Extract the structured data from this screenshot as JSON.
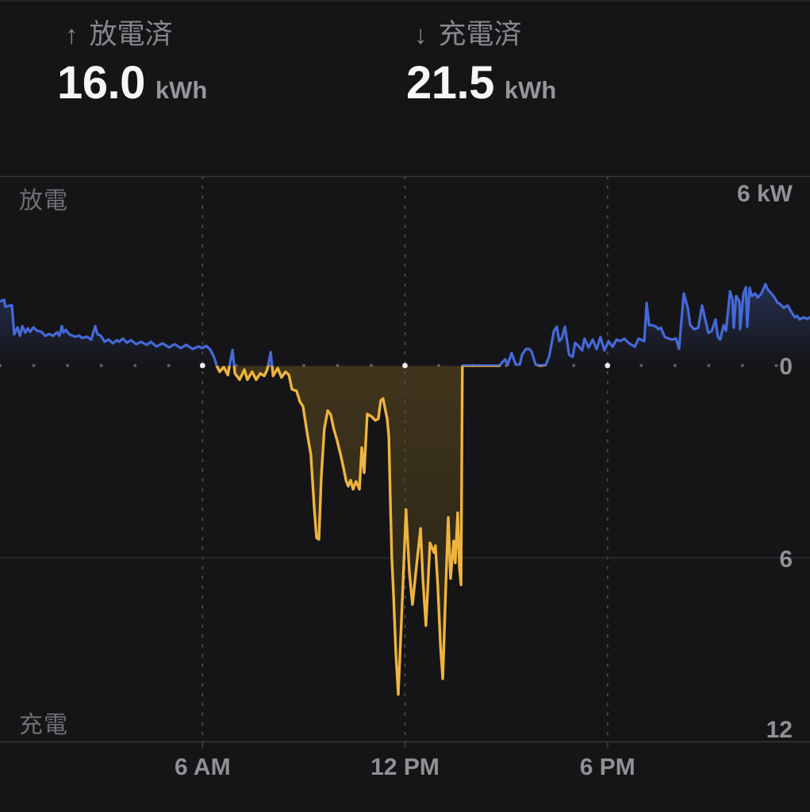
{
  "header": {
    "discharged": {
      "arrow": "↑",
      "label": "放電済",
      "value": "16.0",
      "unit": "kWh"
    },
    "charged": {
      "arrow": "↓",
      "label": "充電済",
      "value": "21.5",
      "unit": "kWh"
    }
  },
  "chart": {
    "discharge_zone_label": "放電",
    "charge_zone_label": "充電",
    "y_axis": {
      "top_label": "6 kW",
      "zero_label": "0",
      "mid_label": "6",
      "bottom_label": "12"
    },
    "colors": {
      "background": "#151517",
      "discharge_line": "#4569d8",
      "charge_line": "#eeb43f",
      "grid_line": "#2e2e32",
      "border_line": "#37373b",
      "dashed_line": "#47474b",
      "dot_minor": "#5d5d62",
      "dot_major": "#eeeef0"
    }
  },
  "chart_data": {
    "type": "area",
    "title": "",
    "xlabel": "",
    "ylabel": "kW",
    "x_axis": {
      "unit": "hour",
      "range": [
        0,
        24
      ],
      "ticks": [
        {
          "hour": 6,
          "label": "6 AM"
        },
        {
          "hour": 12,
          "label": "12 PM"
        },
        {
          "hour": 18,
          "label": "6 PM"
        }
      ]
    },
    "y_axis": {
      "unit": "kW",
      "range": [
        -12,
        6
      ],
      "gridlines_kw": [
        6,
        0,
        -6,
        -12
      ],
      "zero_line_style": "dotted-hourly",
      "positive_zone_label": "放電",
      "negative_zone_label": "充電"
    },
    "summary": {
      "discharged_kwh": 16.0,
      "charged_kwh": 21.5
    },
    "series": [
      {
        "name": "battery_power_kw",
        "positive_means": "discharge (放電)",
        "negative_means": "charge (充電)",
        "points": [
          [
            0,
            2.05
          ],
          [
            0.12,
            2.1
          ],
          [
            0.16,
            1.88
          ],
          [
            0.35,
            1.93
          ],
          [
            0.42,
            1
          ],
          [
            0.52,
            1.22
          ],
          [
            0.59,
            0.95
          ],
          [
            0.66,
            1.26
          ],
          [
            0.75,
            1.05
          ],
          [
            0.82,
            1.19
          ],
          [
            0.89,
            1.08
          ],
          [
            0.99,
            1.22
          ],
          [
            1.1,
            1.11
          ],
          [
            1.22,
            1.08
          ],
          [
            1.34,
            0.95
          ],
          [
            1.46,
            1.01
          ],
          [
            1.57,
            0.95
          ],
          [
            1.69,
            1.06
          ],
          [
            1.76,
            0.95
          ],
          [
            1.83,
            1.26
          ],
          [
            1.88,
            1.05
          ],
          [
            1.95,
            1.14
          ],
          [
            2.05,
            1
          ],
          [
            2.23,
            0.92
          ],
          [
            2.35,
            0.96
          ],
          [
            2.42,
            0.88
          ],
          [
            2.59,
            0.92
          ],
          [
            2.7,
            0.82
          ],
          [
            2.82,
            1.26
          ],
          [
            2.89,
            1
          ],
          [
            2.99,
            0.95
          ],
          [
            3.1,
            0.76
          ],
          [
            3.22,
            0.83
          ],
          [
            3.34,
            0.71
          ],
          [
            3.46,
            0.81
          ],
          [
            3.53,
            0.76
          ],
          [
            3.64,
            0.86
          ],
          [
            3.76,
            0.73
          ],
          [
            3.88,
            0.81
          ],
          [
            4.04,
            0.68
          ],
          [
            4.18,
            0.76
          ],
          [
            4.35,
            0.66
          ],
          [
            4.47,
            0.76
          ],
          [
            4.63,
            0.61
          ],
          [
            4.82,
            0.71
          ],
          [
            5.01,
            0.58
          ],
          [
            5.17,
            0.68
          ],
          [
            5.36,
            0.56
          ],
          [
            5.52,
            0.66
          ],
          [
            5.71,
            0.53
          ],
          [
            5.88,
            0.61
          ],
          [
            5.99,
            0.56
          ],
          [
            6.11,
            0.63
          ],
          [
            6.23,
            0.51
          ],
          [
            6.35,
            0.25
          ],
          [
            6.42,
            0
          ],
          [
            6.51,
            -0.2
          ],
          [
            6.63,
            -0.05
          ],
          [
            6.75,
            -0.3
          ],
          [
            6.82,
            0.1
          ],
          [
            6.89,
            0.5
          ],
          [
            6.96,
            -0.25
          ],
          [
            7.1,
            -0.45
          ],
          [
            7.24,
            -0.13
          ],
          [
            7.33,
            -0.45
          ],
          [
            7.47,
            -0.2
          ],
          [
            7.59,
            -0.45
          ],
          [
            7.71,
            -0.25
          ],
          [
            7.83,
            -0.33
          ],
          [
            7.92,
            -0.13
          ],
          [
            8.02,
            0.43
          ],
          [
            8.09,
            -0.33
          ],
          [
            8.23,
            -0.08
          ],
          [
            8.34,
            -0.38
          ],
          [
            8.46,
            -0.2
          ],
          [
            8.56,
            -0.3
          ],
          [
            8.65,
            -0.76
          ],
          [
            8.79,
            -0.81
          ],
          [
            8.88,
            -1.14
          ],
          [
            8.98,
            -1.31
          ],
          [
            9.1,
            -2.15
          ],
          [
            9.21,
            -2.83
          ],
          [
            9.31,
            -4.55
          ],
          [
            9.38,
            -5.5
          ],
          [
            9.45,
            -5.55
          ],
          [
            9.52,
            -3.55
          ],
          [
            9.61,
            -2.02
          ],
          [
            9.71,
            -1.44
          ],
          [
            9.8,
            -1.57
          ],
          [
            9.89,
            -2.02
          ],
          [
            9.99,
            -2.4
          ],
          [
            10.09,
            -2.83
          ],
          [
            10.18,
            -3.28
          ],
          [
            10.25,
            -3.66
          ],
          [
            10.32,
            -3.85
          ],
          [
            10.39,
            -3.66
          ],
          [
            10.46,
            -3.95
          ],
          [
            10.55,
            -3.7
          ],
          [
            10.65,
            -3.95
          ],
          [
            10.72,
            -2.62
          ],
          [
            10.79,
            -3.42
          ],
          [
            10.88,
            -1.55
          ],
          [
            11,
            -1.62
          ],
          [
            11.12,
            -1.75
          ],
          [
            11.21,
            -1.7
          ],
          [
            11.28,
            -1.12
          ],
          [
            11.35,
            -1.05
          ],
          [
            11.47,
            -1.7
          ],
          [
            11.52,
            -2.25
          ],
          [
            11.57,
            -4.5
          ],
          [
            11.61,
            -6.15
          ],
          [
            11.66,
            -7.3
          ],
          [
            11.73,
            -9.2
          ],
          [
            11.8,
            -10.5
          ],
          [
            11.92,
            -7.5
          ],
          [
            12.03,
            -4.6
          ],
          [
            12.13,
            -6.6
          ],
          [
            12.22,
            -7.63
          ],
          [
            12.34,
            -6.4
          ],
          [
            12.46,
            -5.2
          ],
          [
            12.53,
            -6.8
          ],
          [
            12.62,
            -8.3
          ],
          [
            12.74,
            -5.66
          ],
          [
            12.86,
            -5.97
          ],
          [
            12.9,
            -5.75
          ],
          [
            12.97,
            -7
          ],
          [
            13.05,
            -8.95
          ],
          [
            13.12,
            -10
          ],
          [
            13.21,
            -7
          ],
          [
            13.28,
            -4.85
          ],
          [
            13.35,
            -6.8
          ],
          [
            13.44,
            -5.6
          ],
          [
            13.49,
            -6.3
          ],
          [
            13.56,
            -4.7
          ],
          [
            13.61,
            -6.4
          ],
          [
            13.66,
            -7
          ],
          [
            13.7,
            0
          ],
          [
            14.1,
            0
          ],
          [
            14.8,
            0
          ],
          [
            14.88,
            0.1
          ],
          [
            14.97,
            0.2
          ],
          [
            15.04,
            0.02
          ],
          [
            15.16,
            0.4
          ],
          [
            15.28,
            0.03
          ],
          [
            15.4,
            0.03
          ],
          [
            15.47,
            0.35
          ],
          [
            15.58,
            0.53
          ],
          [
            15.68,
            0.53
          ],
          [
            15.75,
            0.45
          ],
          [
            15.87,
            0.03
          ],
          [
            16.01,
            0
          ],
          [
            16.17,
            0.02
          ],
          [
            16.27,
            0.28
          ],
          [
            16.41,
            1.09
          ],
          [
            16.5,
            1.24
          ],
          [
            16.57,
            0.78
          ],
          [
            16.64,
            0.86
          ],
          [
            16.74,
            1.24
          ],
          [
            16.86,
            0.35
          ],
          [
            16.97,
            0.28
          ],
          [
            17.04,
            0.73
          ],
          [
            17.16,
            0.6
          ],
          [
            17.25,
            0.48
          ],
          [
            17.32,
            0.86
          ],
          [
            17.44,
            0.58
          ],
          [
            17.56,
            0.83
          ],
          [
            17.68,
            0.53
          ],
          [
            17.79,
            0.91
          ],
          [
            17.91,
            0.48
          ],
          [
            18.03,
            0.78
          ],
          [
            18.15,
            0.6
          ],
          [
            18.27,
            0.83
          ],
          [
            18.38,
            0.78
          ],
          [
            18.5,
            0.86
          ],
          [
            18.64,
            0.71
          ],
          [
            18.81,
            0.6
          ],
          [
            18.92,
            0.86
          ],
          [
            19.09,
            0.78
          ],
          [
            19.16,
            2
          ],
          [
            19.23,
            1.29
          ],
          [
            19.32,
            1.29
          ],
          [
            19.44,
            1.24
          ],
          [
            19.51,
            1.16
          ],
          [
            19.58,
            1.21
          ],
          [
            19.7,
            0.91
          ],
          [
            19.82,
            0.86
          ],
          [
            19.91,
            0.83
          ],
          [
            20.03,
            0.86
          ],
          [
            20.12,
            0.53
          ],
          [
            20.26,
            2.3
          ],
          [
            20.38,
            1.84
          ],
          [
            20.45,
            1.29
          ],
          [
            20.57,
            1.16
          ],
          [
            20.69,
            1.21
          ],
          [
            20.8,
            1.92
          ],
          [
            20.92,
            1.36
          ],
          [
            20.99,
            1.04
          ],
          [
            21.09,
            1.11
          ],
          [
            21.2,
            1.47
          ],
          [
            21.27,
            0.91
          ],
          [
            21.34,
            0.83
          ],
          [
            21.44,
            1.29
          ],
          [
            21.51,
            1.11
          ],
          [
            21.63,
            2.37
          ],
          [
            21.7,
            2.12
          ],
          [
            21.74,
            1.21
          ],
          [
            21.81,
            2.22
          ],
          [
            21.91,
            2.05
          ],
          [
            21.93,
            1.16
          ],
          [
            22.03,
            2.3
          ],
          [
            22.1,
            2.5
          ],
          [
            22.14,
            1.24
          ],
          [
            22.21,
            2.48
          ],
          [
            22.28,
            2.22
          ],
          [
            22.38,
            2.3
          ],
          [
            22.45,
            2.17
          ],
          [
            22.56,
            2.3
          ],
          [
            22.68,
            2.6
          ],
          [
            22.75,
            2.43
          ],
          [
            22.85,
            2.3
          ],
          [
            22.92,
            2.22
          ],
          [
            23.04,
            2
          ],
          [
            23.11,
            1.97
          ],
          [
            23.22,
            1.84
          ],
          [
            23.34,
            1.92
          ],
          [
            23.43,
            1.74
          ],
          [
            23.55,
            1.54
          ],
          [
            23.62,
            1.59
          ],
          [
            23.69,
            1.47
          ],
          [
            23.81,
            1.54
          ],
          [
            23.92,
            1.49
          ],
          [
            24,
            1.54
          ]
        ]
      }
    ]
  }
}
